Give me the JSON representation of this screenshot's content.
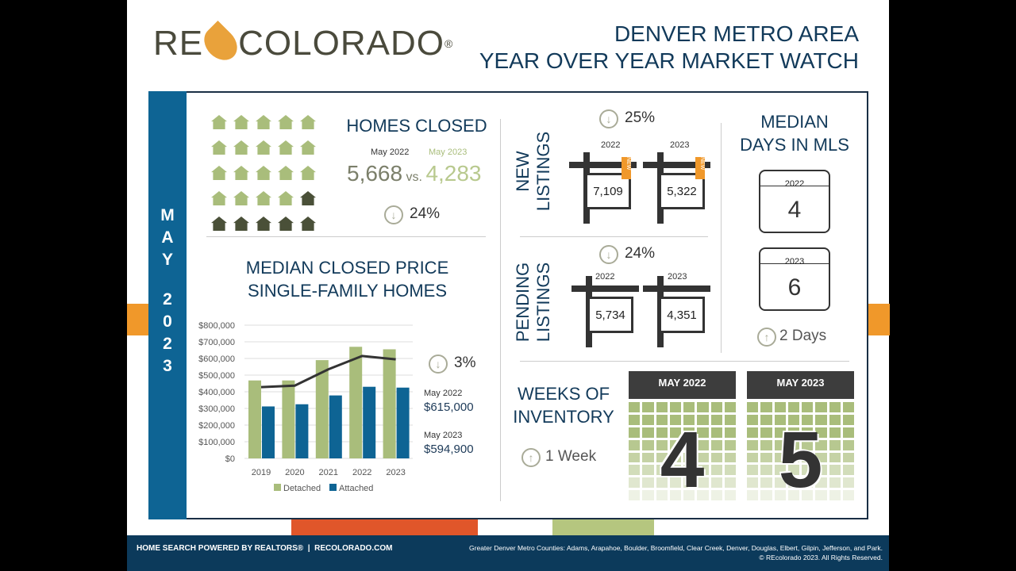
{
  "logo": {
    "text_left": "RE",
    "text_right": "COLORADO",
    "mark": "®"
  },
  "title": {
    "line1": "DENVER METRO AREA",
    "line2": "YEAR OVER YEAR MARKET WATCH"
  },
  "side": {
    "month": "MAY",
    "year": "2023"
  },
  "homes_closed": {
    "title": "HOMES CLOSED",
    "label_2022": "May 2022",
    "label_2023": "May 2023",
    "value_2022": "5,668",
    "vs": "vs.",
    "value_2023": "4,283",
    "change": "24%",
    "direction": "down"
  },
  "median_price": {
    "title1": "MEDIAN CLOSED PRICE",
    "title2": "SINGLE-FAMILY HOMES",
    "change": "3%",
    "direction": "down",
    "label_2022": "May 2022",
    "value_2022": "$615,000",
    "label_2023": "May 2023",
    "value_2023": "$594,900"
  },
  "chart_data": {
    "type": "bar",
    "categories": [
      "2019",
      "2020",
      "2021",
      "2022",
      "2023"
    ],
    "series": [
      {
        "name": "Detached",
        "color": "#a9bd7b",
        "values": [
          468000,
          468000,
          590000,
          670000,
          655000
        ]
      },
      {
        "name": "Attached",
        "color": "#0e6494",
        "values": [
          312000,
          325000,
          378000,
          430000,
          425000
        ]
      },
      {
        "name": "Median (line)",
        "color": "#333333",
        "type": "line",
        "values": [
          428000,
          437000,
          535000,
          615000,
          594900
        ]
      }
    ],
    "yticks": [
      "$0",
      "$100,000",
      "$200,000",
      "$300,000",
      "$400,000",
      "$500,000",
      "$600,000",
      "$700,000",
      "$800,000"
    ],
    "ylim": [
      0,
      800000
    ],
    "legend": [
      "Detached",
      "Attached"
    ],
    "legend_position": "bottom"
  },
  "new_listings": {
    "label1": "NEW",
    "label2": "LISTINGS",
    "change": "25%",
    "direction": "down",
    "year_2022": "2022",
    "value_2022": "7,109",
    "year_2023": "2023",
    "value_2023": "5,322",
    "badge": "NEW"
  },
  "pending_listings": {
    "label1": "PENDING",
    "label2": "LISTINGS",
    "change": "24%",
    "direction": "down",
    "year_2022": "2022",
    "value_2022": "5,734",
    "year_2023": "2023",
    "value_2023": "4,351"
  },
  "days_in_mls": {
    "title1": "MEDIAN",
    "title2": "DAYS IN MLS",
    "year_2022": "2022",
    "value_2022": "4",
    "year_2023": "2023",
    "value_2023": "6",
    "change": "2 Days",
    "direction": "up"
  },
  "weeks_inventory": {
    "title1": "WEEKS OF",
    "title2": "INVENTORY",
    "change": "1 Week",
    "direction": "up",
    "label_2022": "MAY 2022",
    "value_2022": "4",
    "label_2023": "MAY 2023",
    "value_2023": "5"
  },
  "footer": {
    "left": "HOME SEARCH POWERED BY REALTORS®",
    "site": "RECOLORADO.COM",
    "counties": "Greater Denver Metro Counties: Adams, Arapahoe, Boulder, Broomfield, Clear Creek, Denver, Douglas, Elbert, Gilpin, Jefferson, and Park.",
    "copyright": "© REcolorado 2023. All Rights Reserved."
  }
}
